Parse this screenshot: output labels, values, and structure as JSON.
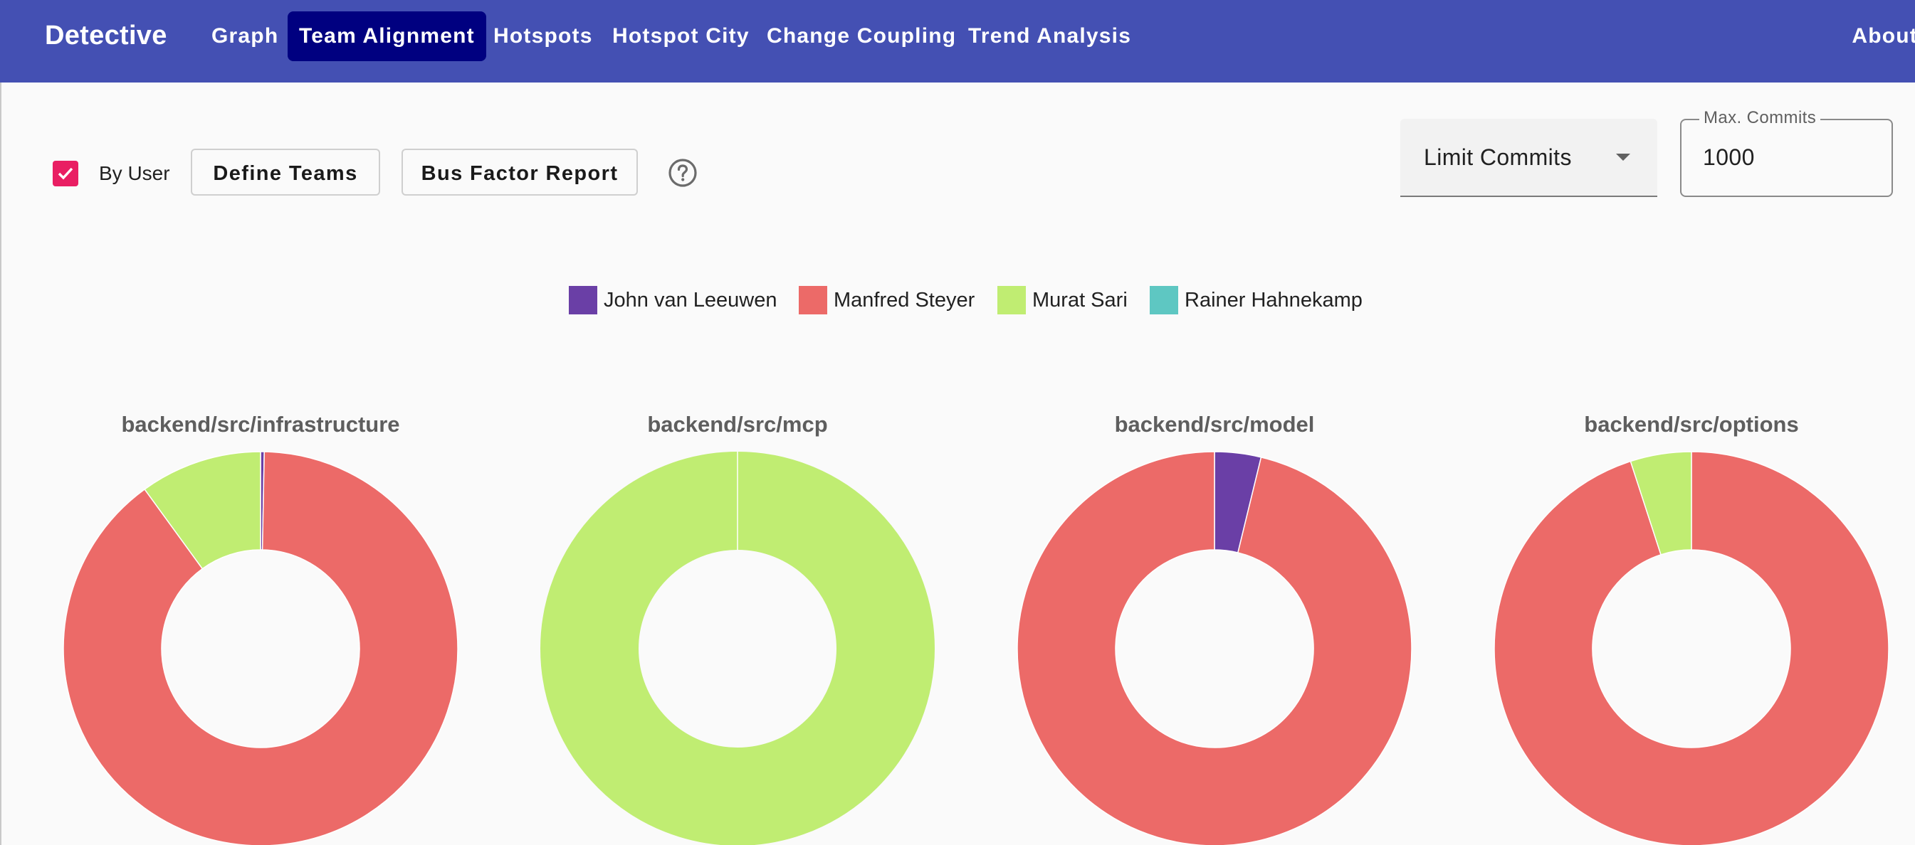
{
  "app": {
    "title": "Detective"
  },
  "nav": {
    "items": [
      {
        "label": "Graph",
        "active": false
      },
      {
        "label": "Team Alignment",
        "active": true
      },
      {
        "label": "Hotspots",
        "active": false
      },
      {
        "label": "Hotspot City",
        "active": false
      },
      {
        "label": "Change Coupling",
        "active": false
      },
      {
        "label": "Trend Analysis",
        "active": false
      }
    ],
    "about": "About"
  },
  "controls": {
    "by_user": {
      "label": "By User",
      "checked": true
    },
    "define_teams": "Define Teams",
    "bus_factor_report": "Bus Factor Report",
    "help_icon": "help-circle-icon",
    "limit_select": {
      "value": "Limit Commits"
    },
    "max_commits": {
      "label": "Max. Commits",
      "value": "1000"
    }
  },
  "colors": {
    "toolbar": "#4450b3",
    "active_tab": "#000080",
    "checkbox": "#e91e63"
  },
  "chart_data": [
    {
      "type": "pie",
      "title": "backend/src/infrastructure",
      "series": [
        {
          "name": "John van Leeuwen",
          "value": 0.3
        },
        {
          "name": "Manfred Steyer",
          "value": 89.7
        },
        {
          "name": "Murat Sari",
          "value": 10.0
        },
        {
          "name": "Rainer Hahnekamp",
          "value": 0
        }
      ]
    },
    {
      "type": "pie",
      "title": "backend/src/mcp",
      "series": [
        {
          "name": "John van Leeuwen",
          "value": 0
        },
        {
          "name": "Manfred Steyer",
          "value": 0
        },
        {
          "name": "Murat Sari",
          "value": 100
        },
        {
          "name": "Rainer Hahnekamp",
          "value": 0
        }
      ]
    },
    {
      "type": "pie",
      "title": "backend/src/model",
      "series": [
        {
          "name": "John van Leeuwen",
          "value": 3.8
        },
        {
          "name": "Manfred Steyer",
          "value": 96.2
        },
        {
          "name": "Murat Sari",
          "value": 0
        },
        {
          "name": "Rainer Hahnekamp",
          "value": 0
        }
      ]
    },
    {
      "type": "pie",
      "title": "backend/src/options",
      "series": [
        {
          "name": "John van Leeuwen",
          "value": 0
        },
        {
          "name": "Manfred Steyer",
          "value": 95.0
        },
        {
          "name": "Murat Sari",
          "value": 5.0
        },
        {
          "name": "Rainer Hahnekamp",
          "value": 0
        }
      ]
    }
  ],
  "legend": [
    {
      "name": "John van Leeuwen",
      "color": "#6a3fa6"
    },
    {
      "name": "Manfred Steyer",
      "color": "#ec6a68"
    },
    {
      "name": "Murat Sari",
      "color": "#c0ed72"
    },
    {
      "name": "Rainer Hahnekamp",
      "color": "#5ec7c2"
    }
  ]
}
